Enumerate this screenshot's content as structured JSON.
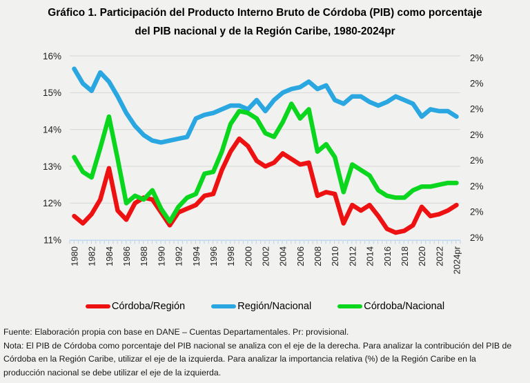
{
  "title": {
    "line1": "Gráfico 1. Participación del Producto Interno Bruto de Córdoba (PIB) como porcentaje",
    "line2": "del PIB nacional y de la Región Caribe, 1980-2024pr"
  },
  "footer": {
    "fuente": "Fuente: Elaboración propia con base en DANE – Cuentas Departamentales. Pr: provisional.",
    "nota": "Nota: El PIB de Córdoba como porcentaje del PIB nacional se analiza con el eje de la derecha. Para analizar la contribución del PIB de Córdoba en la Región Caribe, utilizar el eje de la izquierda. Para analizar la importancia relativa (%) de la Región Caribe en la producción nacional se debe utilizar el eje de la izquierda."
  },
  "chart_data": {
    "type": "line",
    "title": "Participación del PIB de Córdoba como porcentaje del PIB nacional y de la Región Caribe, 1980-2024pr",
    "x_years": [
      1980,
      1981,
      1982,
      1983,
      1984,
      1985,
      1986,
      1987,
      1988,
      1989,
      1990,
      1991,
      1992,
      1993,
      1994,
      1995,
      1996,
      1997,
      1998,
      1999,
      2000,
      2001,
      2002,
      2003,
      2004,
      2005,
      2006,
      2007,
      2008,
      2009,
      2010,
      2011,
      2012,
      2013,
      2014,
      2015,
      2016,
      2017,
      2018,
      2019,
      2020,
      2021,
      2022,
      2023,
      2024
    ],
    "x_tick_labels": [
      "1980",
      "1982",
      "1984",
      "1986",
      "1988",
      "1990",
      "1992",
      "1994",
      "1996",
      "1998",
      "2000",
      "2002",
      "2004",
      "2006",
      "2008",
      "2010",
      "2012",
      "2014",
      "2016",
      "2018",
      "2020",
      "2022",
      "2024pr"
    ],
    "left_axis": {
      "tick_labels": [
        "16%",
        "15%",
        "14%",
        "13%",
        "12%",
        "11%"
      ],
      "min": 11,
      "max": 16
    },
    "right_axis": {
      "tick_labels": [
        "2%",
        "2%",
        "2%",
        "2%",
        "2%",
        "2%",
        "2%",
        "2%"
      ]
    },
    "grid": true,
    "legend_position": "bottom",
    "series": [
      {
        "name": "Córdoba/Región",
        "color": "#ee1111",
        "axis": "left",
        "values": [
          11.65,
          11.45,
          11.7,
          12.1,
          12.95,
          11.8,
          11.55,
          12.0,
          12.15,
          12.1,
          11.75,
          11.4,
          11.75,
          11.85,
          11.95,
          12.2,
          12.25,
          12.9,
          13.4,
          13.75,
          13.55,
          13.15,
          13.0,
          13.1,
          13.35,
          13.2,
          13.05,
          13.1,
          12.2,
          12.3,
          12.25,
          11.45,
          11.95,
          11.8,
          11.95,
          11.65,
          11.3,
          11.2,
          11.25,
          11.4,
          11.9,
          11.65,
          11.7,
          11.8,
          11.95
        ]
      },
      {
        "name": "Región/Nacional",
        "color": "#2aa7e0",
        "axis": "left",
        "values": [
          15.65,
          15.25,
          15.05,
          15.55,
          15.3,
          14.9,
          14.45,
          14.1,
          13.85,
          13.7,
          13.65,
          13.7,
          13.75,
          13.8,
          14.3,
          14.4,
          14.45,
          14.55,
          14.65,
          14.65,
          14.55,
          14.8,
          14.5,
          14.8,
          15.0,
          15.1,
          15.15,
          15.3,
          15.1,
          15.2,
          14.8,
          14.7,
          14.9,
          14.9,
          14.75,
          14.65,
          14.75,
          14.9,
          14.8,
          14.7,
          14.35,
          14.55,
          14.5,
          14.5,
          14.35
        ]
      },
      {
        "name": "Córdoba/Nacional",
        "color": "#0ad61e",
        "axis": "right",
        "values": [
          13.25,
          12.85,
          12.7,
          13.5,
          14.35,
          13.2,
          12.0,
          12.2,
          12.1,
          12.35,
          11.85,
          11.5,
          11.9,
          12.15,
          12.25,
          12.8,
          12.85,
          13.4,
          14.15,
          14.5,
          14.45,
          14.3,
          13.9,
          13.8,
          14.2,
          14.7,
          14.3,
          14.55,
          13.4,
          13.6,
          13.25,
          12.3,
          13.05,
          12.9,
          12.75,
          12.35,
          12.2,
          12.15,
          12.15,
          12.35,
          12.45,
          12.45,
          12.5,
          12.55,
          12.55
        ]
      }
    ],
    "colors": {
      "axis_line": "#bdd7ee",
      "gridline": "#d6d6d6",
      "background": "#f1f1f0"
    }
  }
}
